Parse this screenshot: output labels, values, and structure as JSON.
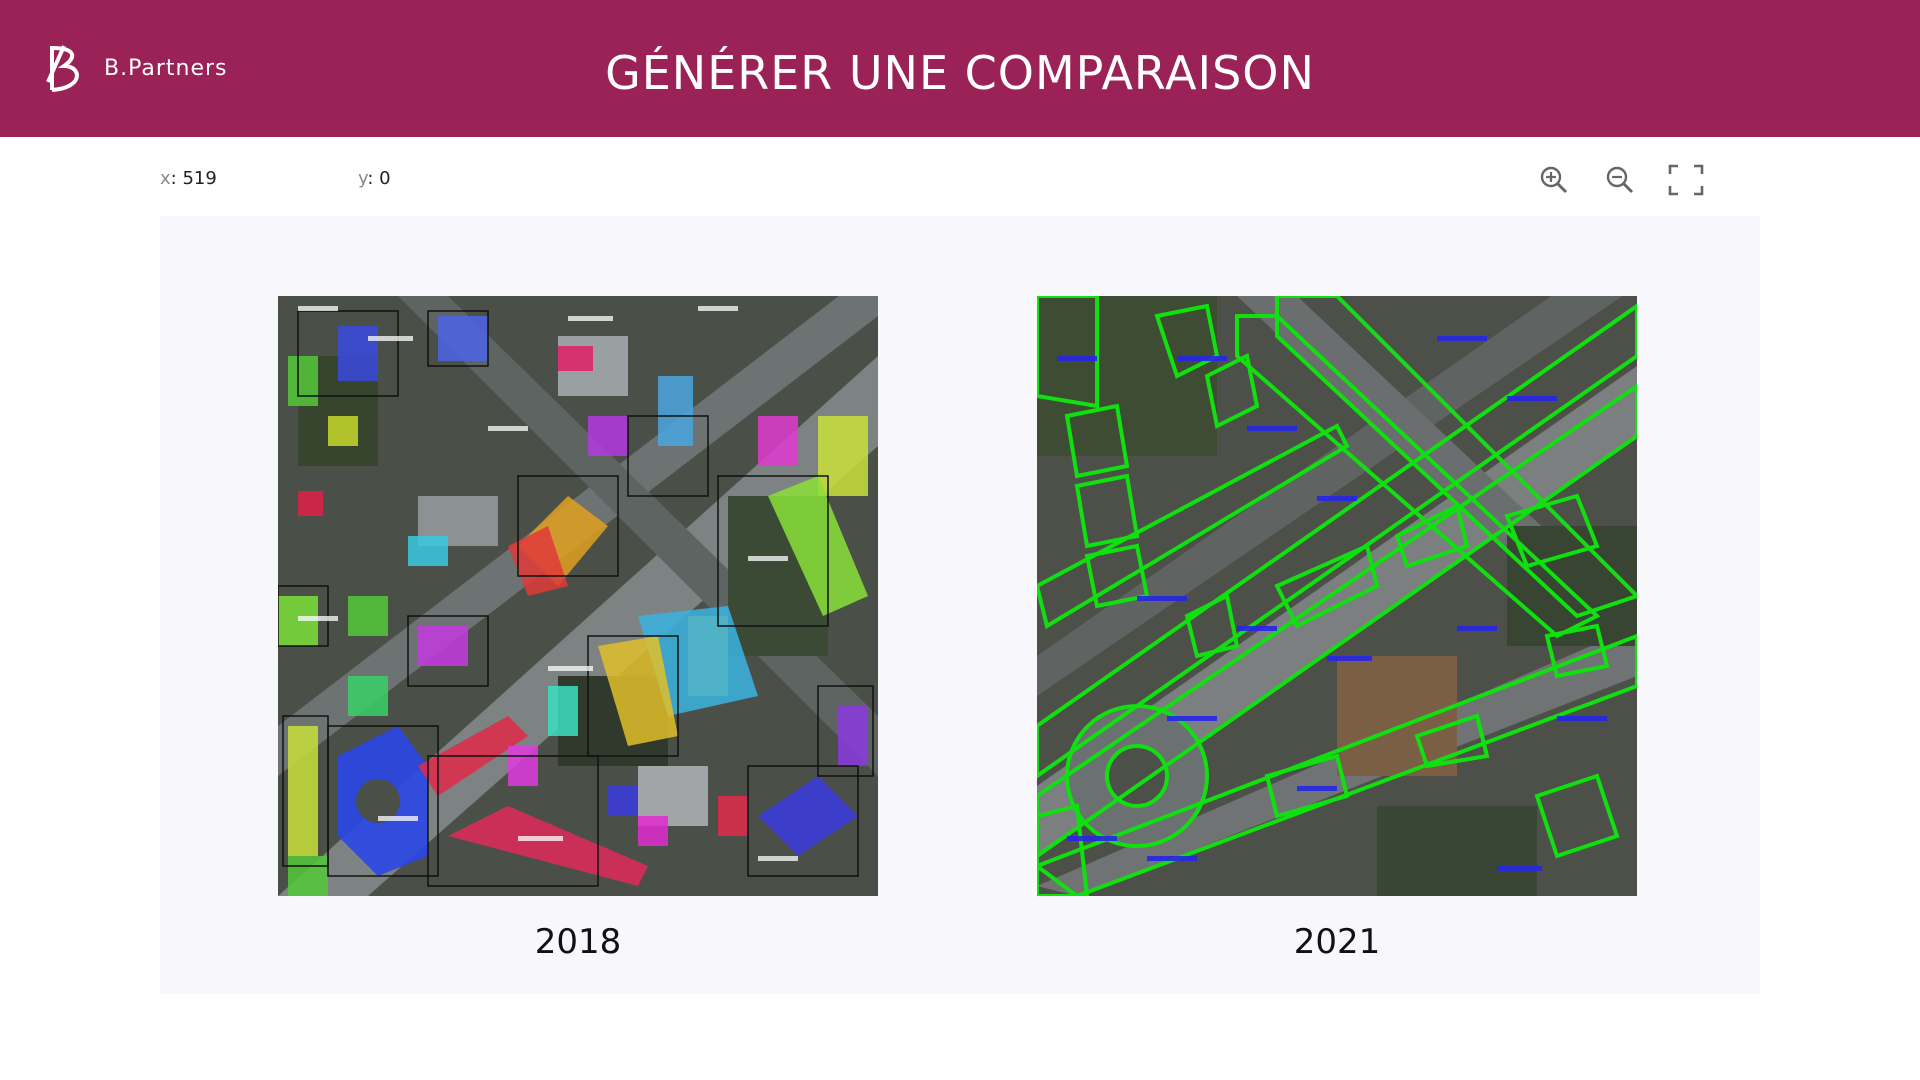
{
  "header": {
    "brand": "B.Partners",
    "title": "GÉNÉRER UNE COMPARAISON",
    "background": "#9b2256"
  },
  "coords": {
    "x_label": "x",
    "x_value": "519",
    "y_label": "y",
    "y_value": "0"
  },
  "toolbar": {
    "zoom_in_icon": "zoom-in-icon",
    "zoom_out_icon": "zoom-out-icon",
    "fullscreen_icon": "fullscreen-icon"
  },
  "panels": [
    {
      "label": "2018",
      "overlay": "instance segmentation (colored masks, boxes)"
    },
    {
      "label": "2021",
      "overlay": "green polygon outlines with blue labels"
    }
  ],
  "colors": {
    "accent": "#9b2256",
    "viewer_bg": "#f8f7fb",
    "outline_green": "#00e000",
    "label_blue": "#2020e0"
  }
}
